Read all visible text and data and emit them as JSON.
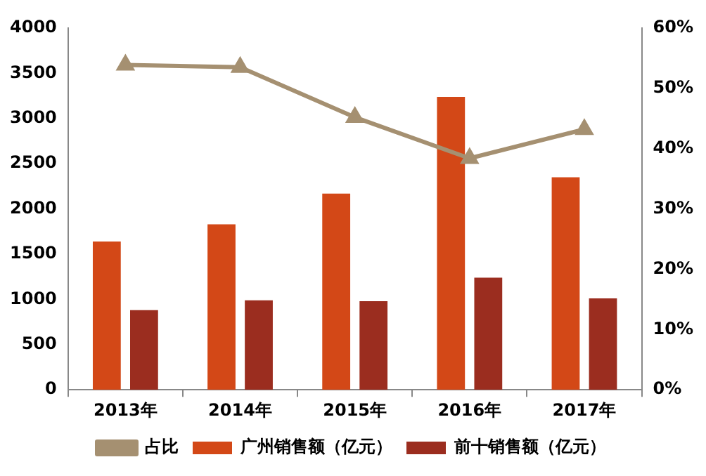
{
  "chart_data": {
    "type": "bar",
    "categories": [
      "2013年",
      "2014年",
      "2015年",
      "2016年",
      "2017年"
    ],
    "series": [
      {
        "name": "广州销售额（亿元）",
        "color": "#d34817",
        "values": [
          1640,
          1830,
          2170,
          3240,
          2350
        ]
      },
      {
        "name": "前十销售额（亿元）",
        "color": "#9b2d1f",
        "values": [
          880,
          990,
          980,
          1240,
          1010
        ]
      },
      {
        "name": "占比",
        "type": "line",
        "axis": "y2",
        "color": "#a59071",
        "values": [
          53.9,
          53.5,
          45.2,
          38.4,
          43.2
        ]
      }
    ],
    "ylim": [
      0,
      4000
    ],
    "yticks": [
      0,
      500,
      1000,
      1500,
      2000,
      2500,
      3000,
      3500,
      4000
    ],
    "y2lim": [
      0,
      60
    ],
    "y2ticks": [
      {
        "value": 0,
        "label": "0%"
      },
      {
        "value": 10,
        "label": "10%"
      },
      {
        "value": 20,
        "label": "20%"
      },
      {
        "value": 30,
        "label": "30%"
      },
      {
        "value": 40,
        "label": "40%"
      },
      {
        "value": 50,
        "label": "50%"
      },
      {
        "value": 60,
        "label": "60%"
      }
    ],
    "legend": "bottom",
    "marker": "triangle",
    "grid": false
  }
}
